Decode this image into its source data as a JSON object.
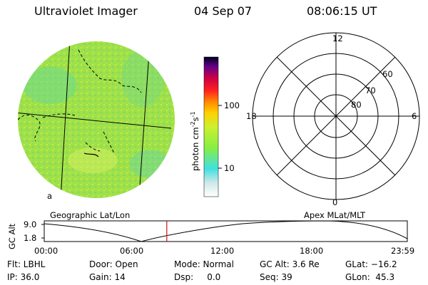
{
  "header": {
    "instrument": "Ultraviolet Imager",
    "date": "04 Sep 07",
    "time": "08:06:15 UT"
  },
  "colors": {
    "disk_fill": "#9ee04a",
    "disk_speckle": "#c8ee3a",
    "disk_cool": "#5fd7a0",
    "line": "#000000",
    "marker": "#d01010"
  },
  "colorbar": {
    "unit_label": "photon cm",
    "unit_sup1": "-2",
    "unit_mid": "s",
    "unit_sup2": "-1",
    "ticks": [
      "100",
      "10"
    ],
    "stops": [
      "#ffffff",
      "#40e0e0",
      "#88ee44",
      "#ffff00",
      "#ff8800",
      "#ff2222",
      "#cc0044",
      "#660088",
      "#000022"
    ]
  },
  "left_panel": {
    "label": "Geographic Lat/Lon",
    "corner_letter": "a"
  },
  "right_panel": {
    "label": "Apex MLat/MLT",
    "mlt_labels": {
      "top": "12",
      "left": "18",
      "right": "6",
      "bottom": "0"
    },
    "lat_labels": [
      "60",
      "70",
      "80"
    ]
  },
  "altitude_plot": {
    "ylabel": "GC Alt",
    "yticks": [
      "9.0",
      "1.8"
    ],
    "xticks": [
      "00:00",
      "06:00",
      "12:00",
      "18:00",
      "23:59"
    ],
    "marker_time_hours": 8.1
  },
  "info": {
    "filter": "Flt: LBHL",
    "door": "Door: Open",
    "mode": "Mode: Normal",
    "gc_alt": "GC Alt: 3.6 Re",
    "glat": "GLat: −16.2",
    "ip": "IP: 36.0",
    "gain": "Gain: 14",
    "dsp": "Dsp:     0.0",
    "seq": "Seq: 39",
    "glon": "GLon:  45.3"
  }
}
